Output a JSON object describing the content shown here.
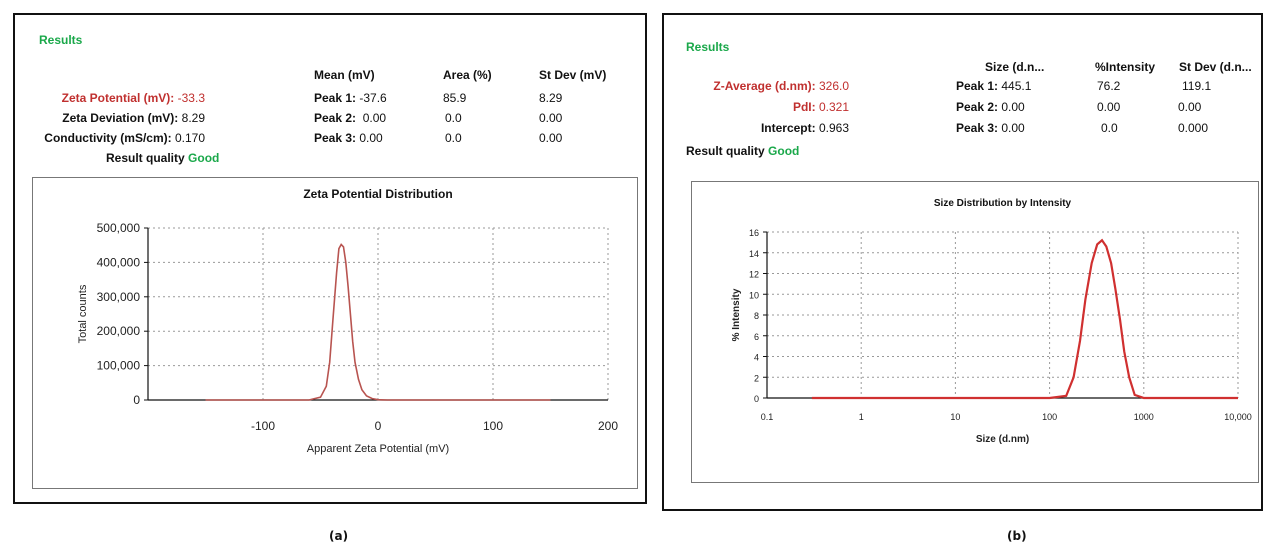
{
  "panel_a": {
    "results_title": "Results",
    "headers": {
      "mean": "Mean (mV)",
      "area": "Area (%)",
      "stdev": "St Dev (mV)"
    },
    "summary": [
      {
        "label": "Zeta Potential (mV):",
        "value": "-33.3"
      },
      {
        "label": "Zeta Deviation (mV):",
        "value": "8.29"
      },
      {
        "label": "Conductivity (mS/cm):",
        "value": "0.170"
      }
    ],
    "quality_label": "Result quality",
    "quality_value": "Good",
    "peaks": [
      {
        "label": "Peak 1:",
        "mean": "-37.6",
        "area": "85.9",
        "stdev": "8.29"
      },
      {
        "label": "Peak 2:",
        "mean": "0.00",
        "area": "0.0",
        "stdev": "0.00"
      },
      {
        "label": "Peak 3:",
        "mean": "0.00",
        "area": "0.0",
        "stdev": "0.00"
      }
    ],
    "caption": "(a)"
  },
  "panel_b": {
    "results_title": "Results",
    "headers": {
      "size": "Size (d.n...",
      "intensity": "%Intensity",
      "stdev": "St Dev (d.n..."
    },
    "summary": [
      {
        "label": "Z-Average (d.nm):",
        "value": "326.0"
      },
      {
        "label": "PdI:",
        "value": "0.321"
      },
      {
        "label": "Intercept:",
        "value": "0.963"
      }
    ],
    "quality_label": "Result quality",
    "quality_value": "Good",
    "peaks": [
      {
        "label": "Peak 1:",
        "size": "445.1",
        "intensity": "76.2",
        "stdev": "119.1"
      },
      {
        "label": "Peak 2:",
        "size": "0.00",
        "intensity": "0.00",
        "stdev": "0.00"
      },
      {
        "label": "Peak 3:",
        "size": "0.00",
        "intensity": "0.0",
        "stdev": "0.000"
      }
    ],
    "caption": "(b)"
  },
  "chart_data": [
    {
      "type": "line",
      "title": "Zeta Potential Distribution",
      "xlabel": "Apparent Zeta Potential (mV)",
      "ylabel": "Total counts",
      "xlim": [
        -200,
        200
      ],
      "ylim": [
        0,
        500000
      ],
      "xticks": [
        -100,
        0,
        100,
        200
      ],
      "xtick_labels": [
        "-100",
        "0",
        "100",
        "200"
      ],
      "yticks": [
        0,
        100000,
        200000,
        300000,
        400000,
        500000
      ],
      "ytick_labels": [
        "0",
        "100,000",
        "200,000",
        "300,000",
        "400,000",
        "500,000"
      ],
      "grid": true,
      "line_color": "#b85450",
      "series": [
        {
          "x": [
            -150,
            -60,
            -50,
            -45,
            -42,
            -39,
            -36,
            -34,
            -32,
            -30,
            -28,
            -26,
            -24,
            -22,
            -20,
            -17,
            -14,
            -10,
            -5,
            0,
            8,
            60,
            150
          ],
          "y": [
            0,
            0,
            8000,
            40000,
            110000,
            240000,
            370000,
            440000,
            452000,
            445000,
            400000,
            330000,
            250000,
            170000,
            110000,
            60000,
            30000,
            12000,
            4000,
            1000,
            0,
            0,
            0
          ]
        }
      ]
    },
    {
      "type": "line",
      "title": "Size Distribution by Intensity",
      "xlabel": "Size (d.nm)",
      "ylabel": "% Intensity",
      "xscale": "log",
      "xlim": [
        0.1,
        10000
      ],
      "ylim": [
        0,
        16
      ],
      "xticks": [
        0.1,
        1,
        10,
        100,
        1000,
        10000
      ],
      "xtick_labels": [
        "0.1",
        "1",
        "10",
        "100",
        "1000",
        "10,000"
      ],
      "yticks": [
        0,
        2,
        4,
        6,
        8,
        10,
        12,
        14,
        16
      ],
      "ytick_labels": [
        "0",
        "2",
        "4",
        "6",
        "8",
        "10",
        "12",
        "14",
        "16"
      ],
      "grid": true,
      "line_color": "#d03030",
      "series": [
        {
          "x": [
            0.3,
            100,
            150,
            180,
            210,
            240,
            280,
            320,
            360,
            400,
            450,
            500,
            560,
            620,
            700,
            800,
            1000,
            10000
          ],
          "y": [
            0,
            0,
            0.2,
            2.0,
            5.5,
            9.5,
            13.0,
            14.8,
            15.2,
            14.6,
            13.0,
            10.5,
            7.5,
            4.5,
            2.0,
            0.3,
            0,
            0
          ]
        }
      ]
    }
  ]
}
